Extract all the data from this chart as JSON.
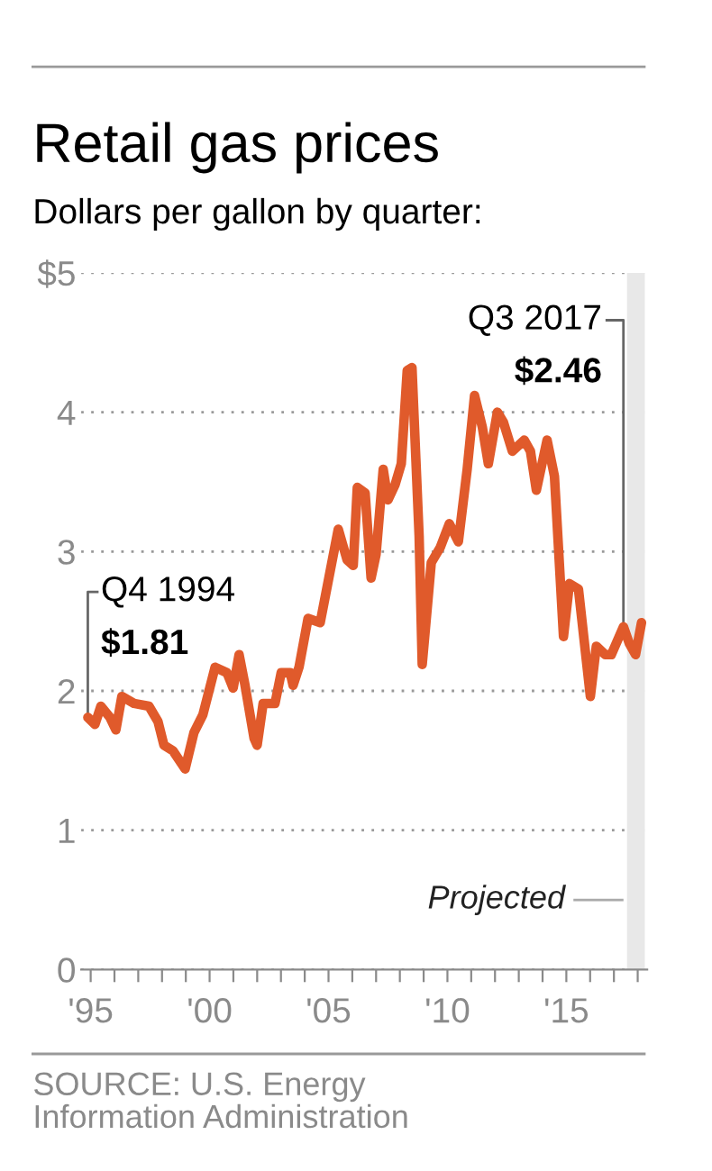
{
  "chart_data": {
    "type": "line",
    "title": "Retail gas prices",
    "subtitle": "Dollars per gallon by quarter:",
    "x": [
      1994.88,
      1995.18,
      1995.43,
      1995.81,
      1996.06,
      1996.31,
      1996.82,
      1997.45,
      1997.83,
      1998.08,
      1998.46,
      1998.97,
      1999.34,
      1999.72,
      2000.23,
      2000.73,
      2000.99,
      2001.24,
      2001.49,
      2001.87,
      2002.0,
      2002.25,
      2002.75,
      2003.01,
      2003.39,
      2003.51,
      2003.76,
      2004.14,
      2004.65,
      2005.41,
      2005.78,
      2006.04,
      2006.21,
      2006.54,
      2006.79,
      2007.0,
      2007.3,
      2007.5,
      2007.8,
      2008.06,
      2008.31,
      2008.51,
      2008.81,
      2008.94,
      2009.32,
      2009.7,
      2010.08,
      2010.46,
      2010.83,
      2011.14,
      2011.47,
      2011.72,
      2012.1,
      2012.35,
      2012.73,
      2013.23,
      2013.49,
      2013.74,
      2014.19,
      2014.5,
      2014.88,
      2015.13,
      2015.51,
      2016.01,
      2016.26,
      2016.64,
      2016.89,
      2017.4,
      2017.65,
      2017.91,
      2018.16
    ],
    "series": [
      {
        "color": "#e05a2b",
        "values": [
          1.81,
          1.76,
          1.89,
          1.81,
          1.72,
          1.96,
          1.91,
          1.89,
          1.78,
          1.61,
          1.57,
          1.44,
          1.7,
          1.83,
          2.17,
          2.13,
          2.02,
          2.26,
          2.04,
          1.66,
          1.61,
          1.91,
          1.91,
          2.13,
          2.13,
          2.04,
          2.17,
          2.52,
          2.49,
          3.16,
          2.94,
          2.9,
          3.46,
          3.42,
          2.81,
          2.98,
          3.59,
          3.37,
          3.48,
          3.63,
          4.3,
          4.32,
          3.11,
          2.19,
          2.92,
          3.03,
          3.2,
          3.07,
          3.59,
          4.12,
          3.89,
          3.63,
          4.0,
          3.93,
          3.72,
          3.8,
          3.72,
          3.44,
          3.8,
          3.54,
          2.39,
          2.77,
          2.73,
          1.96,
          2.32,
          2.26,
          2.26,
          2.46,
          2.34,
          2.26,
          2.49
        ]
      }
    ],
    "xlim": [
      1994.6,
      2018.4
    ],
    "xticks": [
      {
        "value": 1995,
        "label": "'95"
      },
      {
        "value": 1996,
        "label": null
      },
      {
        "value": 1997,
        "label": null
      },
      {
        "value": 1998,
        "label": null
      },
      {
        "value": 1999,
        "label": null
      },
      {
        "value": 2000,
        "label": "'00"
      },
      {
        "value": 2001,
        "label": null
      },
      {
        "value": 2002,
        "label": null
      },
      {
        "value": 2003,
        "label": null
      },
      {
        "value": 2004,
        "label": null
      },
      {
        "value": 2005,
        "label": "'05"
      },
      {
        "value": 2006,
        "label": null
      },
      {
        "value": 2007,
        "label": null
      },
      {
        "value": 2008,
        "label": null
      },
      {
        "value": 2009,
        "label": null
      },
      {
        "value": 2010,
        "label": "'10"
      },
      {
        "value": 2011,
        "label": null
      },
      {
        "value": 2012,
        "label": null
      },
      {
        "value": 2013,
        "label": null
      },
      {
        "value": 2014,
        "label": null
      },
      {
        "value": 2015,
        "label": "'15"
      },
      {
        "value": 2016,
        "label": null
      },
      {
        "value": 2017,
        "label": null
      },
      {
        "value": 2018,
        "label": null
      }
    ],
    "ylim": [
      0,
      5
    ],
    "yticks": [
      0,
      1,
      2,
      3,
      4,
      {
        "value": 5,
        "label": "$5"
      }
    ],
    "grid": "y",
    "line_style": "solid",
    "marker": "none",
    "bands": [
      {
        "axis": "x",
        "from": 2017.55,
        "to": 2018.3,
        "label": "Projected",
        "color": "#e8e8e8"
      }
    ],
    "annotations": [
      {
        "text": "Q4 1994\n$1.81",
        "x": 1994.88,
        "y": 1.81
      },
      {
        "text": "Q3 2017\n$2.46",
        "x": 2017.4,
        "y": 2.46
      },
      "SOURCE: U.S. Energy\nInformation Administration"
    ]
  }
}
